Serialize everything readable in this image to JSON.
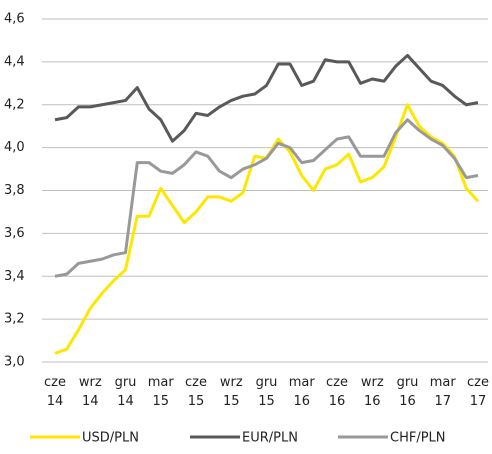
{
  "chart_data": {
    "type": "line",
    "categories": [
      "cze 14",
      null,
      null,
      "wrz 14",
      null,
      null,
      "gru 14",
      null,
      null,
      "mar 15",
      null,
      null,
      "cze 15",
      null,
      null,
      "wrz 15",
      null,
      null,
      "gru 15",
      null,
      null,
      "mar 16",
      null,
      null,
      "cze 16",
      null,
      null,
      "wrz 16",
      null,
      null,
      "gru 16",
      null,
      null,
      "mar 17",
      null,
      null,
      "cze 17"
    ],
    "series": [
      {
        "name": "USD/PLN",
        "color": "#ffe600",
        "values": [
          3.04,
          3.06,
          3.15,
          3.25,
          3.32,
          3.38,
          3.43,
          3.68,
          3.68,
          3.81,
          3.73,
          3.65,
          3.7,
          3.77,
          3.77,
          3.75,
          3.79,
          3.96,
          3.95,
          4.04,
          3.98,
          3.87,
          3.8,
          3.9,
          3.92,
          3.97,
          3.84,
          3.86,
          3.91,
          4.05,
          4.2,
          4.1,
          4.05,
          4.02,
          3.96,
          3.81,
          3.75
        ]
      },
      {
        "name": "EUR/PLN",
        "color": "#595959",
        "values": [
          4.13,
          4.14,
          4.19,
          4.19,
          4.2,
          4.21,
          4.22,
          4.28,
          4.18,
          4.13,
          4.03,
          4.08,
          4.16,
          4.15,
          4.19,
          4.22,
          4.24,
          4.25,
          4.29,
          4.39,
          4.39,
          4.29,
          4.31,
          4.41,
          4.4,
          4.4,
          4.3,
          4.32,
          4.31,
          4.38,
          4.43,
          4.37,
          4.31,
          4.29,
          4.24,
          4.2,
          4.21
        ]
      },
      {
        "name": "CHF/PLN",
        "color": "#999999",
        "values": [
          3.4,
          3.41,
          3.46,
          3.47,
          3.48,
          3.5,
          3.51,
          3.93,
          3.93,
          3.89,
          3.88,
          3.92,
          3.98,
          3.96,
          3.89,
          3.86,
          3.9,
          3.92,
          3.95,
          4.02,
          4.0,
          3.93,
          3.94,
          3.99,
          4.04,
          4.05,
          3.96,
          3.96,
          3.96,
          4.07,
          4.13,
          4.08,
          4.04,
          4.01,
          3.95,
          3.86,
          3.87
        ]
      }
    ],
    "ylim": [
      3.0,
      4.6
    ],
    "yticks": [
      {
        "value": 3.0,
        "label": "3,0"
      },
      {
        "value": 3.2,
        "label": "3,2"
      },
      {
        "value": 3.4,
        "label": "3,4"
      },
      {
        "value": 3.6,
        "label": "3,6"
      },
      {
        "value": 3.8,
        "label": "3,8"
      },
      {
        "value": 4.0,
        "label": "4,0"
      },
      {
        "value": 4.2,
        "label": "4,2"
      },
      {
        "value": 4.4,
        "label": "4,4"
      },
      {
        "value": 4.6,
        "label": "4,6"
      }
    ],
    "grid": true,
    "legend": "bottom"
  }
}
